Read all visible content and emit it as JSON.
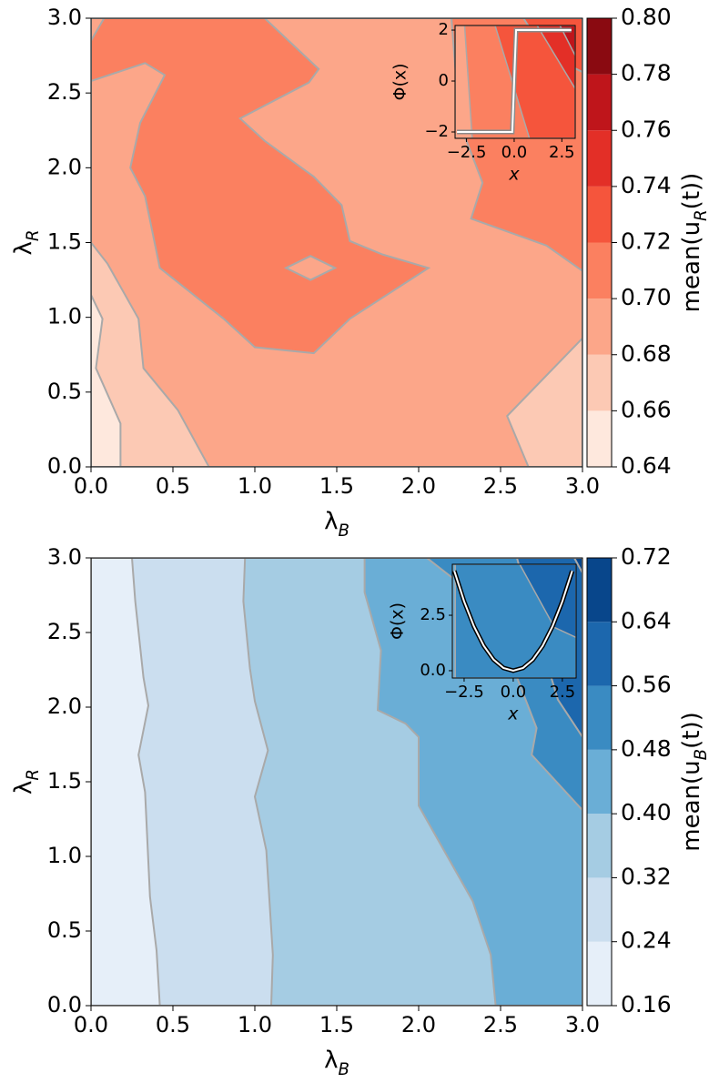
{
  "chart_data": [
    {
      "type": "contourf",
      "xlabel": "λ_{B}",
      "ylabel": "λ_{R}",
      "colorbar_label": "mean(u_{R}(t))",
      "xlim": [
        0,
        3
      ],
      "ylim": [
        0,
        3
      ],
      "xticks": [
        {
          "value": 0,
          "label": "0.0"
        },
        0.5,
        {
          "value": 1,
          "label": "1.0"
        },
        1.5,
        {
          "value": 2,
          "label": "2.0"
        },
        2.5,
        {
          "value": 3,
          "label": "3.0"
        }
      ],
      "yticks": [
        {
          "value": 0,
          "label": "0.0"
        },
        0.5,
        {
          "value": 1,
          "label": "1.0"
        },
        1.5,
        {
          "value": 2,
          "label": "2.0"
        },
        2.5,
        {
          "value": 3,
          "label": "3.0"
        }
      ],
      "levels": [
        0.64,
        0.66,
        0.68,
        {
          "value": 0.7,
          "label": "0.70"
        },
        0.72,
        0.74,
        0.76,
        0.78,
        {
          "value": 0.8,
          "label": "0.80"
        }
      ],
      "colors": [
        "#fee8dd",
        "#fcc9b4",
        "#fca689",
        "#fb8060",
        "#f5553c",
        "#e32f27",
        "#bf151b",
        "#8a0a11"
      ],
      "regions": [
        {
          "level": 0.64,
          "x": [
            0,
            3,
            3,
            0
          ],
          "y": [
            0,
            0,
            3,
            3
          ]
        },
        {
          "level": 0.66,
          "x": [
            0.18,
            3,
            3,
            0,
            0,
            0.07,
            0.03,
            0.18
          ],
          "y": [
            0,
            0,
            3,
            3,
            1.15,
            0.99,
            0.66,
            0.29
          ]
        },
        {
          "level": 0.68,
          "x": [
            0,
            0.1,
            0.29,
            0.32,
            0.53,
            0.72,
            2.67,
            2.54,
            3,
            3,
            0
          ],
          "y": [
            1.5,
            1.36,
            0.99,
            0.66,
            0.38,
            0,
            0,
            0.34,
            0.86,
            3,
            3
          ]
        },
        {
          "level": 0.7,
          "x": [
            0,
            0.33,
            0.45,
            0.3,
            0.24,
            0.33,
            0.42,
            0.81,
            1.0,
            1.36,
            1.58,
            2.06,
            1.78,
            1.58,
            1.53,
            1.36,
            1.06,
            0.91,
            1.33,
            1.39,
            1.06,
            0.08,
            0
          ],
          "y": [
            2.58,
            2.7,
            2.62,
            2.3,
            2.0,
            1.81,
            1.33,
            0.99,
            0.8,
            0.76,
            0.99,
            1.33,
            1.42,
            1.51,
            1.75,
            1.94,
            2.18,
            2.33,
            2.57,
            2.66,
            3,
            3,
            2.85
          ]
        },
        {
          "level": 0.68,
          "x": [
            1.19,
            1.34,
            1.49,
            1.34
          ],
          "y": [
            1.33,
            1.41,
            1.33,
            1.25
          ]
        },
        {
          "level": 0.7,
          "x": [
            3,
            2.78,
            2.32,
            2.39,
            2.25,
            2.2,
            3
          ],
          "y": [
            1.31,
            1.48,
            1.66,
            1.9,
            2.3,
            3,
            3
          ]
        },
        {
          "level": 0.72,
          "x": [
            2.64,
            2.78,
            3,
            3
          ],
          "y": [
            3,
            2.76,
            2.64,
            3
          ]
        }
      ],
      "inset": {
        "xlabel": "x",
        "ylabel": "Φ(x)",
        "xlim": [
          -3.1,
          3.2
        ],
        "ylim": [
          -2.25,
          2.18
        ],
        "xticks": [
          {
            "value": -2.5,
            "label": "−2.5"
          },
          {
            "value": 0,
            "label": "0.0"
          },
          2.5
        ],
        "yticks": [
          {
            "value": -2,
            "label": "−2"
          },
          0,
          2
        ],
        "x": [
          -3,
          -0.1,
          0.1,
          3
        ],
        "y": [
          -2,
          -2,
          2,
          2
        ],
        "regions": [
          {
            "level": 0.68,
            "x": [
              -3.1,
              3.2,
              3.2,
              -3.1
            ],
            "y": [
              -2.25,
              -2.25,
              2.18,
              2.18
            ]
          },
          {
            "level": 0.7,
            "x": [
              -2.6,
              3.2,
              3.2,
              -2.2
            ],
            "y": [
              2.18,
              2.18,
              -2.25,
              -2.25
            ]
          },
          {
            "level": 0.72,
            "x": [
              -1,
              3.2,
              3.2,
              0.8
            ],
            "y": [
              2.18,
              2.18,
              -2.25,
              -2.25
            ]
          },
          {
            "level": 0.74,
            "x": [
              1.2,
              3.2,
              3.2
            ],
            "y": [
              2.18,
              2.18,
              -0.3
            ]
          },
          {
            "level": 0.76,
            "x": [
              2.4,
              3.2,
              3.2
            ],
            "y": [
              2.18,
              2.18,
              1
            ]
          }
        ]
      }
    },
    {
      "type": "contourf",
      "xlabel": "λ_{B}",
      "ylabel": "λ_{R}",
      "colorbar_label": "mean(u_{B}(t))",
      "xlim": [
        0,
        3
      ],
      "ylim": [
        0,
        3
      ],
      "xticks": [
        {
          "value": 0,
          "label": "0.0"
        },
        0.5,
        {
          "value": 1,
          "label": "1.0"
        },
        1.5,
        {
          "value": 2,
          "label": "2.0"
        },
        2.5,
        {
          "value": 3,
          "label": "3.0"
        }
      ],
      "yticks": [
        {
          "value": 0,
          "label": "0.0"
        },
        0.5,
        {
          "value": 1,
          "label": "1.0"
        },
        1.5,
        {
          "value": 2,
          "label": "2.0"
        },
        2.5,
        {
          "value": 3,
          "label": "3.0"
        }
      ],
      "levels": [
        0.16,
        0.24,
        0.32,
        {
          "value": 0.4,
          "label": "0.40"
        },
        0.48,
        0.56,
        0.64,
        0.72
      ],
      "colors": [
        "#e6eff9",
        "#cbdeef",
        "#a5cce3",
        "#6aaed6",
        "#3a8bc2",
        "#1c67ad",
        "#08468b"
      ],
      "regions": [
        {
          "level": 0.16,
          "x": [
            0,
            3,
            3,
            0
          ],
          "y": [
            0,
            0,
            3,
            3
          ]
        },
        {
          "level": 0.24,
          "x": [
            0.25,
            3,
            3,
            0.42,
            0.4,
            0.36,
            0.33,
            0.29,
            0.35,
            0.32,
            0.27
          ],
          "y": [
            3,
            3,
            0,
            0,
            0.37,
            0.73,
            1.43,
            1.68,
            2.01,
            2.2,
            2.71
          ]
        },
        {
          "level": 0.32,
          "x": [
            0.94,
            3,
            3,
            1.1,
            1.11,
            1.07,
            1.0,
            1.08,
            1.0,
            0.97,
            0.93
          ],
          "y": [
            3,
            3,
            0,
            0,
            0.34,
            1.04,
            1.4,
            1.71,
            2.04,
            2.26,
            2.71
          ]
        },
        {
          "level": 0.4,
          "x": [
            1.67,
            3,
            3,
            2.47,
            2.44,
            2.33,
            2.0,
            2.0,
            1.92,
            1.75,
            1.77,
            1.67
          ],
          "y": [
            3,
            3,
            0,
            0,
            0.34,
            0.7,
            1.34,
            1.8,
            1.89,
            1.98,
            2.38,
            2.77
          ]
        },
        {
          "level": 0.48,
          "x": [
            2.05,
            3,
            3,
            2.69,
            2.72,
            2.6,
            2.4
          ],
          "y": [
            3,
            3,
            1.31,
            1.68,
            1.86,
            2.2,
            2.7
          ]
        },
        {
          "level": 0.56,
          "x": [
            2.6,
            3,
            3,
            2.85,
            2.7
          ],
          "y": [
            3,
            3,
            1.8,
            2.05,
            2.6
          ]
        },
        {
          "level": 0.64,
          "x": [
            2.95,
            3,
            3
          ],
          "y": [
            3,
            3,
            2.9
          ]
        }
      ],
      "inset": {
        "xlabel": "x",
        "ylabel": "Φ(x)",
        "xlim": [
          -3.1,
          3.2
        ],
        "ylim": [
          -0.33,
          4.8
        ],
        "xticks": [
          {
            "value": -2.5,
            "label": "−2.5"
          },
          {
            "value": 0,
            "label": "0.0"
          },
          2.5
        ],
        "yticks": [
          {
            "value": 0,
            "label": "0.0"
          },
          2.5
        ],
        "x": [
          -3,
          -2.5,
          -2,
          -1.5,
          -1,
          -0.5,
          0,
          0.5,
          1,
          1.5,
          2,
          2.5,
          3
        ],
        "y": [
          4.5,
          3.125,
          2,
          1.125,
          0.5,
          0.125,
          0,
          0.125,
          0.5,
          1.125,
          2,
          3.125,
          4.5
        ],
        "regions": [
          {
            "level": 0.4,
            "x": [
              -3.1,
              3.2,
              3.2,
              -3.1
            ],
            "y": [
              -0.33,
              -0.33,
              4.8,
              4.8
            ]
          },
          {
            "level": 0.48,
            "x": [
              -2.95,
              3.2,
              3.2,
              -2.95
            ],
            "y": [
              -0.33,
              -0.33,
              4.8,
              4.8
            ]
          },
          {
            "level": 0.56,
            "x": [
              0.33,
              3.2,
              3.2,
              2.1
            ],
            "y": [
              4.8,
              4.8,
              1.5,
              1.95
            ]
          }
        ]
      }
    }
  ]
}
